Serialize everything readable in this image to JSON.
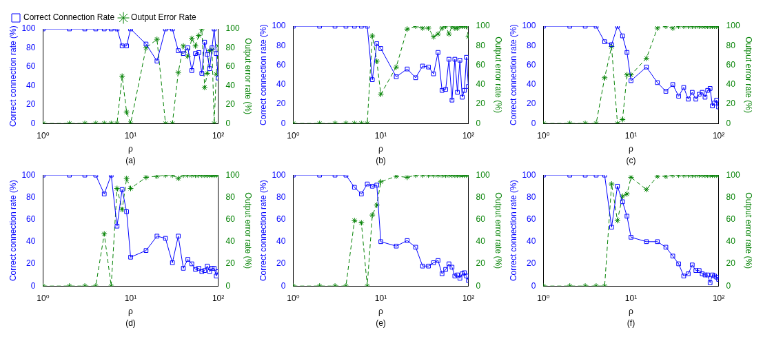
{
  "chart_data": [
    {
      "type": "line",
      "xlabel": "ρ",
      "ylabel": "Correct connection rate (%)",
      "y2label": "Output error rate (%)",
      "annotations": [
        "(a)"
      ],
      "log": "x",
      "legend": "top left",
      "grid": false,
      "x": [
        1,
        2,
        3,
        4,
        5,
        6,
        7,
        8,
        9,
        10,
        15,
        20,
        25,
        30,
        35,
        40,
        45,
        50,
        55,
        60,
        65,
        70,
        75,
        80,
        85,
        90,
        95,
        100
      ],
      "xlim": [
        1,
        100
      ],
      "xticks": [
        {
          "value": 1,
          "label": "10⁰"
        },
        {
          "value": 10,
          "label": "10¹"
        },
        {
          "value": 100,
          "label": "10²"
        }
      ],
      "ylim": [
        0,
        100
      ],
      "yticks": [
        0,
        20,
        40,
        60,
        80,
        100
      ],
      "y2lim": [
        0,
        100
      ],
      "y2ticks": [
        0,
        20,
        40,
        60,
        80,
        100
      ],
      "series": [
        {
          "name": "Correct Connection Rate",
          "color": "#0000ff",
          "marker": "square",
          "line_style": "solid",
          "values": [
            100,
            100,
            100,
            100,
            100,
            100,
            100,
            82,
            82,
            100,
            84,
            66,
            100,
            100,
            77,
            74,
            80,
            56,
            74,
            75,
            53,
            86,
            73,
            58,
            80,
            100,
            74,
            48
          ]
        },
        {
          "name": "Output Error Rate",
          "color": "#008000",
          "marker": "cross",
          "line_style": "dashed",
          "axis": "y2",
          "values": [
            0,
            0,
            0,
            0,
            0,
            0,
            0,
            50,
            12,
            0,
            80,
            89,
            0,
            0,
            54,
            82,
            71,
            90,
            82,
            93,
            100,
            38,
            53,
            77,
            78,
            0,
            52,
            82
          ]
        }
      ]
    },
    {
      "type": "line",
      "xlabel": "ρ",
      "ylabel": "Correct connection rate (%)",
      "y2label": "Output error rate (%)",
      "annotations": [
        "(b)"
      ],
      "log": "x",
      "grid": false,
      "x": [
        1,
        2,
        3,
        4,
        5,
        6,
        7,
        8,
        9,
        10,
        15,
        20,
        25,
        30,
        35,
        40,
        45,
        50,
        55,
        60,
        65,
        70,
        75,
        80,
        85,
        90,
        95,
        100
      ],
      "xlim": [
        1,
        100
      ],
      "xticks": [
        {
          "value": 1,
          "label": "10⁰"
        },
        {
          "value": 10,
          "label": "10¹"
        },
        {
          "value": 100,
          "label": "10²"
        }
      ],
      "ylim": [
        0,
        100
      ],
      "yticks": [
        0,
        20,
        40,
        60,
        80,
        100
      ],
      "y2lim": [
        0,
        100
      ],
      "y2ticks": [
        0,
        20,
        40,
        60,
        80,
        100
      ],
      "series": [
        {
          "color": "#0000ff",
          "marker": "square",
          "line_style": "solid",
          "values": [
            100,
            100,
            100,
            100,
            100,
            100,
            100,
            45,
            82,
            77,
            48,
            56,
            47,
            59,
            58,
            51,
            73,
            34,
            35,
            66,
            24,
            66,
            32,
            65,
            27,
            34,
            68,
            38
          ]
        },
        {
          "color": "#008000",
          "marker": "cross",
          "line_style": "dashed",
          "axis": "y2",
          "values": [
            0,
            0,
            0,
            0,
            0,
            0,
            0,
            90,
            64,
            30,
            58,
            97,
            100,
            98,
            98,
            89,
            92,
            98,
            100,
            92,
            100,
            98,
            98,
            100,
            100,
            100,
            100,
            89
          ]
        }
      ]
    },
    {
      "type": "line",
      "xlabel": "ρ",
      "ylabel": "Correct connection rate (%)",
      "y2label": "Output error rate (%)",
      "annotations": [
        "(c)"
      ],
      "log": "x",
      "grid": false,
      "x": [
        1,
        2,
        3,
        4,
        5,
        6,
        7,
        8,
        9,
        10,
        15,
        20,
        25,
        30,
        35,
        40,
        45,
        50,
        55,
        60,
        65,
        70,
        75,
        80,
        85,
        90,
        95,
        100
      ],
      "xlim": [
        1,
        100
      ],
      "xticks": [
        {
          "value": 1,
          "label": "10⁰"
        },
        {
          "value": 10,
          "label": "10¹"
        },
        {
          "value": 100,
          "label": "10²"
        }
      ],
      "ylim": [
        0,
        100
      ],
      "yticks": [
        0,
        20,
        40,
        60,
        80,
        100
      ],
      "y2lim": [
        0,
        100
      ],
      "y2ticks": [
        0,
        20,
        40,
        60,
        80,
        100
      ],
      "series": [
        {
          "color": "#0000ff",
          "marker": "square",
          "line_style": "solid",
          "values": [
            100,
            100,
            100,
            100,
            84,
            81,
            100,
            90,
            73,
            44,
            58,
            42,
            33,
            40,
            28,
            37,
            25,
            32,
            25,
            30,
            32,
            27,
            34,
            36,
            18,
            21,
            24,
            17
          ]
        },
        {
          "color": "#008000",
          "marker": "cross",
          "line_style": "dashed",
          "axis": "y2",
          "values": [
            0,
            0,
            0,
            0,
            47,
            79,
            0,
            4,
            50,
            50,
            67,
            98,
            100,
            98,
            100,
            100,
            100,
            100,
            100,
            100,
            100,
            100,
            100,
            100,
            100,
            100,
            100,
            100
          ]
        }
      ]
    },
    {
      "type": "line",
      "xlabel": "ρ",
      "ylabel": "Correct connection rate (%)",
      "y2label": "Output error rate (%)",
      "annotations": [
        "(d)"
      ],
      "log": "x",
      "grid": false,
      "x": [
        1,
        2,
        3,
        4,
        5,
        6,
        7,
        8,
        9,
        10,
        15,
        20,
        25,
        30,
        35,
        40,
        45,
        50,
        55,
        60,
        65,
        70,
        75,
        80,
        85,
        90,
        95,
        100
      ],
      "xlim": [
        1,
        100
      ],
      "xticks": [
        {
          "value": 1,
          "label": "10⁰"
        },
        {
          "value": 10,
          "label": "10¹"
        },
        {
          "value": 100,
          "label": "10²"
        }
      ],
      "ylim": [
        0,
        100
      ],
      "yticks": [
        0,
        20,
        40,
        60,
        80,
        100
      ],
      "y2lim": [
        0,
        100
      ],
      "y2ticks": [
        0,
        20,
        40,
        60,
        80,
        100
      ],
      "series": [
        {
          "color": "#0000ff",
          "marker": "square",
          "line_style": "solid",
          "values": [
            100,
            100,
            100,
            100,
            83,
            100,
            54,
            87,
            67,
            26,
            32,
            45,
            43,
            21,
            45,
            16,
            24,
            20,
            15,
            16,
            13,
            14,
            18,
            13,
            16,
            16,
            9,
            13
          ]
        },
        {
          "color": "#008000",
          "marker": "cross",
          "line_style": "dashed",
          "axis": "y2",
          "values": [
            0,
            0,
            0,
            0,
            47,
            0,
            88,
            69,
            97,
            88,
            98,
            99,
            100,
            100,
            97,
            100,
            100,
            100,
            100,
            100,
            100,
            100,
            100,
            100,
            100,
            100,
            100,
            100
          ]
        }
      ]
    },
    {
      "type": "line",
      "xlabel": "ρ",
      "ylabel": "Correct connection rate (%)",
      "y2label": "Output error rate (%)",
      "annotations": [
        "(e)"
      ],
      "log": "x",
      "grid": false,
      "x": [
        1,
        2,
        3,
        4,
        5,
        6,
        7,
        8,
        9,
        10,
        15,
        20,
        25,
        30,
        35,
        40,
        45,
        50,
        55,
        60,
        65,
        70,
        75,
        80,
        85,
        90,
        95,
        100
      ],
      "xlim": [
        1,
        100
      ],
      "xticks": [
        {
          "value": 1,
          "label": "10⁰"
        },
        {
          "value": 10,
          "label": "10¹"
        },
        {
          "value": 100,
          "label": "10²"
        }
      ],
      "ylim": [
        0,
        100
      ],
      "yticks": [
        0,
        20,
        40,
        60,
        80,
        100
      ],
      "y2lim": [
        0,
        100
      ],
      "y2ticks": [
        0,
        20,
        40,
        60,
        80,
        100
      ],
      "series": [
        {
          "color": "#0000ff",
          "marker": "square",
          "line_style": "solid",
          "values": [
            100,
            100,
            100,
            100,
            89,
            83,
            92,
            90,
            91,
            40,
            36,
            41,
            35,
            18,
            18,
            21,
            23,
            11,
            15,
            20,
            17,
            9,
            10,
            7,
            11,
            12,
            9,
            5
          ]
        },
        {
          "color": "#008000",
          "marker": "cross",
          "line_style": "dashed",
          "axis": "y2",
          "values": [
            0,
            0,
            0,
            0,
            59,
            57,
            0,
            64,
            73,
            94,
            99,
            98,
            100,
            100,
            100,
            100,
            100,
            100,
            100,
            100,
            100,
            100,
            100,
            100,
            100,
            100,
            100,
            100
          ]
        }
      ]
    },
    {
      "type": "line",
      "xlabel": "ρ",
      "ylabel": "Correct connection rate (%)",
      "y2label": "Output error rate (%)",
      "annotations": [
        "(f)"
      ],
      "log": "x",
      "grid": false,
      "x": [
        1,
        2,
        3,
        4,
        5,
        6,
        7,
        8,
        9,
        10,
        15,
        20,
        25,
        30,
        35,
        40,
        45,
        50,
        55,
        60,
        65,
        70,
        75,
        80,
        85,
        90,
        95,
        100
      ],
      "xlim": [
        1,
        100
      ],
      "xticks": [
        {
          "value": 1,
          "label": "10⁰"
        },
        {
          "value": 10,
          "label": "10¹"
        },
        {
          "value": 100,
          "label": "10²"
        }
      ],
      "ylim": [
        0,
        100
      ],
      "yticks": [
        0,
        20,
        40,
        60,
        80,
        100
      ],
      "y2lim": [
        0,
        100
      ],
      "y2ticks": [
        0,
        20,
        40,
        60,
        80,
        100
      ],
      "series": [
        {
          "color": "#0000ff",
          "marker": "square",
          "line_style": "solid",
          "values": [
            100,
            100,
            100,
            100,
            100,
            53,
            90,
            76,
            63,
            44,
            40,
            40,
            35,
            27,
            20,
            9,
            11,
            19,
            14,
            14,
            11,
            10,
            10,
            3,
            10,
            9,
            8,
            6
          ]
        },
        {
          "color": "#008000",
          "marker": "cross",
          "line_style": "dashed",
          "axis": "y2",
          "values": [
            0,
            0,
            0,
            0,
            0,
            92,
            59,
            81,
            83,
            98,
            87,
            99,
            99,
            100,
            100,
            100,
            100,
            100,
            100,
            100,
            100,
            100,
            100,
            100,
            100,
            100,
            100,
            100
          ]
        }
      ]
    }
  ]
}
